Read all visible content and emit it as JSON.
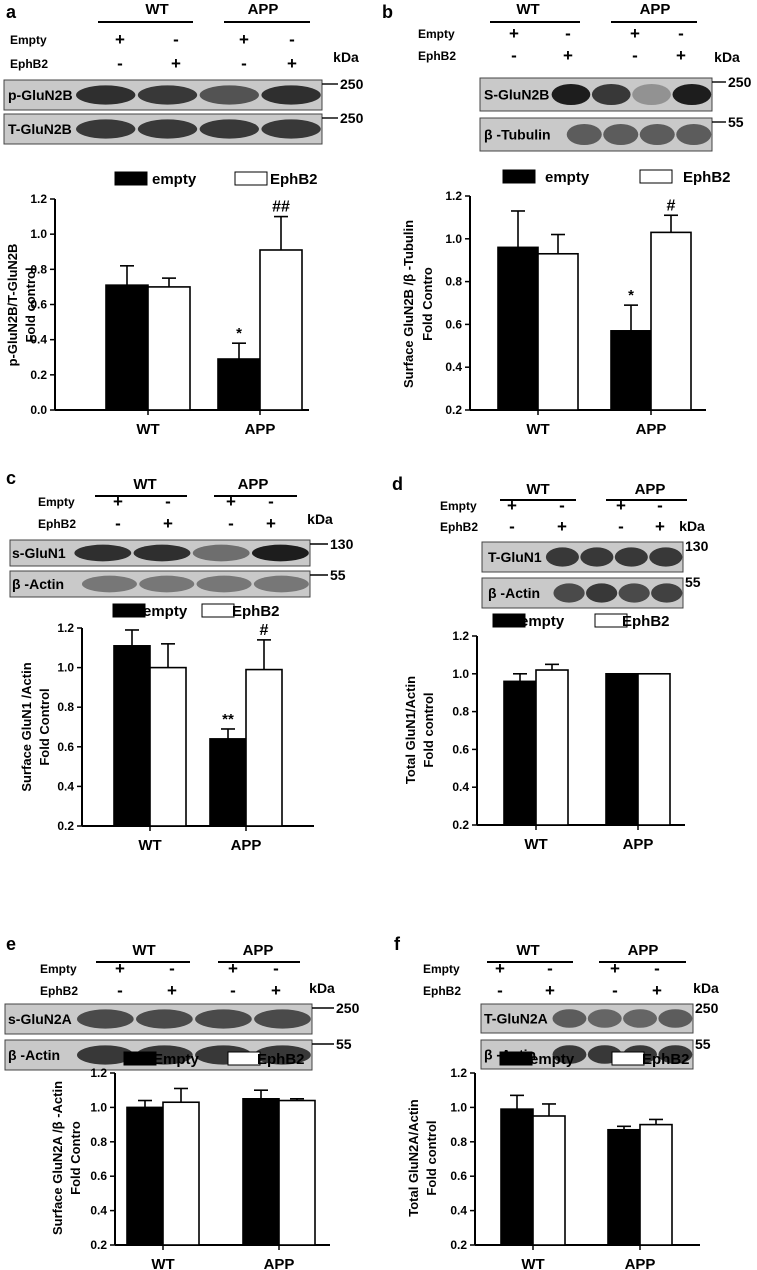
{
  "chart_data": [
    {
      "panel": "a",
      "type": "bar",
      "blot": {
        "groups": [
          "WT",
          "APP"
        ],
        "row_labels": [
          "Empty",
          "EphB2"
        ],
        "rows": [
          [
            "+",
            "-",
            "+",
            "-"
          ],
          [
            "-",
            "+",
            "-",
            "+"
          ]
        ],
        "unit_label": "kDa",
        "markers": [
          "250",
          "250"
        ],
        "bands": [
          "p-GluN2B",
          "T-GluN2B"
        ],
        "band_intensity": [
          [
            0.85,
            0.8,
            0.65,
            0.85
          ],
          [
            0.8,
            0.8,
            0.8,
            0.8
          ]
        ]
      },
      "legend": [
        "empty",
        "EphB2"
      ],
      "categories": [
        "WT",
        "APP"
      ],
      "ylabel": [
        "p-GluN2B/T-GluN2B",
        "Fold control"
      ],
      "ylim": [
        0,
        1.2
      ],
      "yticks": [
        "0.0",
        "0.2",
        "0.4",
        "0.6",
        "0.8",
        "1.0",
        "1.2"
      ],
      "series": [
        {
          "name": "empty",
          "values": [
            0.71,
            0.29
          ],
          "errors": [
            0.11,
            0.09
          ],
          "annotations": [
            "",
            "*"
          ]
        },
        {
          "name": "EphB2",
          "values": [
            0.7,
            0.91
          ],
          "errors": [
            0.05,
            0.19
          ],
          "annotations": [
            "",
            "##"
          ]
        }
      ]
    },
    {
      "panel": "b",
      "type": "bar",
      "blot": {
        "groups": [
          "WT",
          "APP"
        ],
        "row_labels": [
          "Empty",
          "EphB2"
        ],
        "rows": [
          [
            "+",
            "-",
            "+",
            "-"
          ],
          [
            "-",
            "+",
            "-",
            "+"
          ]
        ],
        "unit_label": "kDa",
        "markers": [
          "250",
          "55"
        ],
        "bands": [
          "S-GluN2B",
          "β -Tubulin"
        ],
        "band_intensity": [
          [
            0.95,
            0.8,
            0.3,
            0.95
          ],
          [
            0.6,
            0.6,
            0.6,
            0.6
          ]
        ]
      },
      "legend": [
        "empty",
        "EphB2"
      ],
      "categories": [
        "WT",
        "APP"
      ],
      "ylabel": [
        "Surface GluN2B /β -Tubulin",
        "Fold Contro"
      ],
      "ylim": [
        0.2,
        1.2
      ],
      "yticks": [
        "0.2",
        "0.4",
        "0.6",
        "0.8",
        "1.0",
        "1.2"
      ],
      "series": [
        {
          "name": "empty",
          "values": [
            0.96,
            0.57
          ],
          "errors": [
            0.17,
            0.12
          ],
          "annotations": [
            "",
            "*"
          ]
        },
        {
          "name": "EphB2",
          "values": [
            0.93,
            1.03
          ],
          "errors": [
            0.09,
            0.08
          ],
          "annotations": [
            "",
            "#"
          ]
        }
      ]
    },
    {
      "panel": "c",
      "type": "bar",
      "blot": {
        "groups": [
          "WT",
          "APP"
        ],
        "row_labels": [
          "Empty",
          "EphB2"
        ],
        "rows": [
          [
            "+",
            "-",
            "+",
            "-"
          ],
          [
            "-",
            "+",
            "-",
            "+"
          ]
        ],
        "unit_label": "kDa",
        "markers": [
          "130",
          "55"
        ],
        "bands": [
          "s-GluN1",
          "β -Actin"
        ],
        "band_intensity": [
          [
            0.85,
            0.85,
            0.5,
            0.95
          ],
          [
            0.45,
            0.45,
            0.45,
            0.45
          ]
        ]
      },
      "legend": [
        "empty",
        "EphB2"
      ],
      "categories": [
        "WT",
        "APP"
      ],
      "ylabel": [
        "Surface GluN1 /Actin",
        "Fold Control"
      ],
      "ylim": [
        0.2,
        1.2
      ],
      "yticks": [
        "0.2",
        "0.4",
        "0.6",
        "0.8",
        "1.0",
        "1.2"
      ],
      "series": [
        {
          "name": "empty",
          "values": [
            1.11,
            0.64
          ],
          "errors": [
            0.08,
            0.05
          ],
          "annotations": [
            "",
            "**"
          ]
        },
        {
          "name": "EphB2",
          "values": [
            1.0,
            0.99
          ],
          "errors": [
            0.12,
            0.15
          ],
          "annotations": [
            "",
            "#"
          ]
        }
      ]
    },
    {
      "panel": "d",
      "type": "bar",
      "blot": {
        "groups": [
          "WT",
          "APP"
        ],
        "row_labels": [
          "Empty",
          "EphB2"
        ],
        "rows": [
          [
            "+",
            "-",
            "+",
            "-"
          ],
          [
            "-",
            "+",
            "-",
            "+"
          ]
        ],
        "unit_label": "kDa",
        "markers": [
          "130",
          "55"
        ],
        "bands": [
          "T-GluN1",
          "β -Actin"
        ],
        "band_intensity": [
          [
            0.8,
            0.8,
            0.8,
            0.8
          ],
          [
            0.7,
            0.8,
            0.7,
            0.75
          ]
        ]
      },
      "legend": [
        "empty",
        "EphB2"
      ],
      "categories": [
        "WT",
        "APP"
      ],
      "ylabel": [
        "Total GluN1/Actin",
        "Fold control"
      ],
      "ylim": [
        0.2,
        1.2
      ],
      "yticks": [
        "0.2",
        "0.4",
        "0.6",
        "0.8",
        "1.0",
        "1.2"
      ],
      "series": [
        {
          "name": "empty",
          "values": [
            0.96,
            1.0
          ],
          "errors": [
            0.04,
            0.0
          ],
          "annotations": [
            "",
            ""
          ]
        },
        {
          "name": "EphB2",
          "values": [
            1.02,
            1.0
          ],
          "errors": [
            0.03,
            0.0
          ],
          "annotations": [
            "",
            ""
          ]
        }
      ]
    },
    {
      "panel": "e",
      "type": "bar",
      "blot": {
        "groups": [
          "WT",
          "APP"
        ],
        "row_labels": [
          "Empty",
          "EphB2"
        ],
        "rows": [
          [
            "+",
            "-",
            "+",
            "-"
          ],
          [
            "-",
            "+",
            "-",
            "+"
          ]
        ],
        "unit_label": "kDa",
        "markers": [
          "250",
          "55"
        ],
        "bands": [
          "s-GluN2A",
          "β -Actin"
        ],
        "band_intensity": [
          [
            0.7,
            0.7,
            0.7,
            0.7
          ],
          [
            0.8,
            0.8,
            0.8,
            0.8
          ]
        ]
      },
      "legend": [
        "Empty",
        "EphB2"
      ],
      "categories": [
        "WT",
        "APP"
      ],
      "ylabel": [
        "Surface GluN2A /β -Actin",
        "Fold Contro"
      ],
      "ylim": [
        0.2,
        1.2
      ],
      "yticks": [
        "0.2",
        "0.4",
        "0.6",
        "0.8",
        "1.0",
        "1.2"
      ],
      "series": [
        {
          "name": "Empty",
          "values": [
            1.0,
            1.05
          ],
          "errors": [
            0.04,
            0.05
          ],
          "annotations": [
            "",
            ""
          ]
        },
        {
          "name": "EphB2",
          "values": [
            1.03,
            1.04
          ],
          "errors": [
            0.08,
            0.01
          ],
          "annotations": [
            "",
            ""
          ]
        }
      ]
    },
    {
      "panel": "f",
      "type": "bar",
      "blot": {
        "groups": [
          "WT",
          "APP"
        ],
        "row_labels": [
          "Empty",
          "EphB2"
        ],
        "rows": [
          [
            "+",
            "-",
            "+",
            "-"
          ],
          [
            "-",
            "+",
            "-",
            "+"
          ]
        ],
        "unit_label": "kDa",
        "markers": [
          "250",
          "55"
        ],
        "bands": [
          "T-GluN2A",
          "β -Actin"
        ],
        "band_intensity": [
          [
            0.6,
            0.55,
            0.55,
            0.6
          ],
          [
            0.8,
            0.8,
            0.8,
            0.8
          ]
        ]
      },
      "legend": [
        "empty",
        "EphB2"
      ],
      "categories": [
        "WT",
        "APP"
      ],
      "ylabel": [
        "Total GluN2A/Actin",
        "Fold control"
      ],
      "ylim": [
        0.2,
        1.2
      ],
      "yticks": [
        "0.2",
        "0.4",
        "0.6",
        "0.8",
        "1.0",
        "1.2"
      ],
      "series": [
        {
          "name": "empty",
          "values": [
            0.99,
            0.87
          ],
          "errors": [
            0.08,
            0.02
          ],
          "annotations": [
            "",
            ""
          ]
        },
        {
          "name": "EphB2",
          "values": [
            0.95,
            0.9
          ],
          "errors": [
            0.07,
            0.03
          ],
          "annotations": [
            "",
            ""
          ]
        }
      ]
    }
  ]
}
